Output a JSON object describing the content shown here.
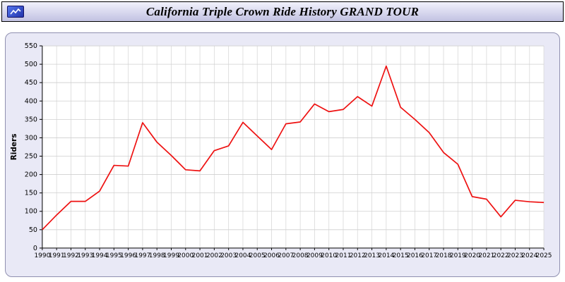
{
  "header": {
    "title": "California Triple Crown Ride History GRAND TOUR",
    "icon": "app-icon"
  },
  "chart_data": {
    "type": "line",
    "title": "California Triple Crown Ride History GRAND TOUR",
    "xlabel": "",
    "ylabel": "Riders",
    "ylim": [
      0,
      550
    ],
    "ytick_step": 50,
    "grid": true,
    "legend_position": "none",
    "line_color": "#ee1111",
    "plot_bg": "#ffffff",
    "panel_bg": "#e9e9f6",
    "x": [
      1990,
      1991,
      1992,
      1993,
      1994,
      1995,
      1996,
      1997,
      1998,
      1999,
      2000,
      2001,
      2002,
      2003,
      2004,
      2005,
      2006,
      2007,
      2008,
      2009,
      2010,
      2011,
      2012,
      2013,
      2014,
      2015,
      2016,
      2017,
      2018,
      2019,
      2020,
      2021,
      2022,
      2023,
      2024,
      2025
    ],
    "series": [
      {
        "name": "Riders",
        "values": [
          50,
          90,
          127,
          127,
          155,
          225,
          223,
          341,
          288,
          252,
          213,
          210,
          265,
          278,
          342,
          305,
          268,
          338,
          343,
          392,
          371,
          377,
          412,
          386,
          495,
          383,
          350,
          314,
          260,
          228,
          140,
          133,
          85,
          130,
          126,
          124
        ]
      }
    ]
  }
}
